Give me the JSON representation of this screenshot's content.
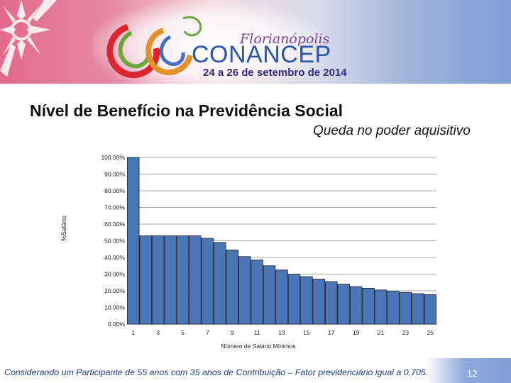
{
  "header": {
    "logo_city": "Florianópolis",
    "logo_name": "CONANCEP",
    "logo_date": "24 a 26 de setembro de 2014"
  },
  "slide": {
    "title": "Nível de Benefício na Previdência Social",
    "subtitle": "Queda no poder aquisitivo",
    "footnote": "Considerando um Participante de 55 anos com 35 anos de Contribuição – Fator previdenciário igual a 0,705.",
    "page_number": "12"
  },
  "colors": {
    "bar": "#4a76b8",
    "bar_edge": "#2b2b2b",
    "grid": "#8a8a8a"
  },
  "chart_data": {
    "type": "bar",
    "x": [
      1,
      2,
      3,
      4,
      5,
      6,
      7,
      8,
      9,
      10,
      11,
      12,
      13,
      14,
      15,
      16,
      17,
      18,
      19,
      20,
      21,
      22,
      23,
      24,
      25
    ],
    "values": [
      100.0,
      53.0,
      53.0,
      53.0,
      53.0,
      53.0,
      51.5,
      49.0,
      44.5,
      40.5,
      38.5,
      35.0,
      32.5,
      30.0,
      28.5,
      27.0,
      25.5,
      24.0,
      22.5,
      21.5,
      20.5,
      19.7,
      19.0,
      18.3,
      17.7
    ],
    "x_tick_labels": [
      "1",
      "3",
      "5",
      "7",
      "9",
      "11",
      "13",
      "15",
      "17",
      "19",
      "21",
      "23",
      "25"
    ],
    "y_tick_labels": [
      "0.00%",
      "10.00%",
      "20.00%",
      "30.00%",
      "40.00%",
      "50.00%",
      "60.00%",
      "70.00%",
      "80.00%",
      "90.00%",
      "100.00%"
    ],
    "xlabel": "Número de Salário Mínimos",
    "ylabel": "%Salário",
    "ylim": [
      0,
      100
    ],
    "grid": true
  }
}
